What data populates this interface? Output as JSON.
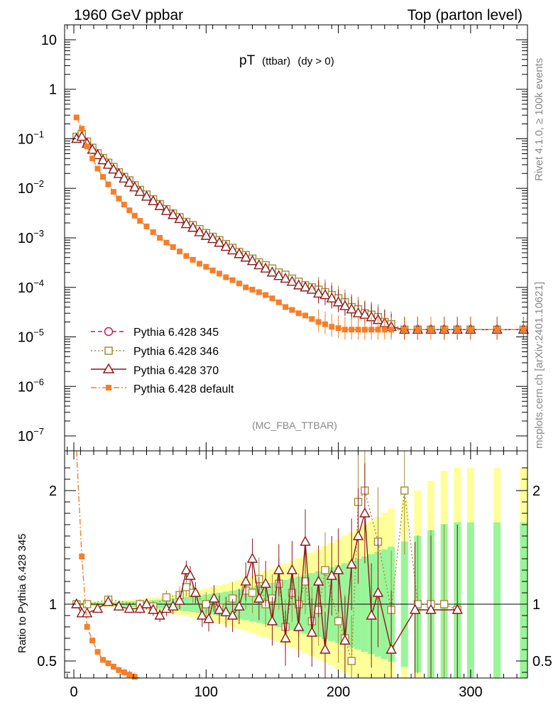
{
  "header": {
    "left": "1960 GeV ppbar",
    "right": "Top (parton level)"
  },
  "plot_title": {
    "main": "pT",
    "sub1": "(ttbar)",
    "sub2": "(dy > 0)"
  },
  "analysis_id": "(MC_FBA_TTBAR)",
  "side_labels": {
    "rivet": "Rivet 4.1.0, ≥ 100k events",
    "site": "mcplots.cern.ch [arXiv:2401.10621]"
  },
  "ratio_ylabel": "Ratio to Pythia 6.428 345",
  "colors": {
    "p345": "#c2185b",
    "p346": "#a68a35",
    "p370": "#8b1a1a",
    "default": "#f57f29",
    "band_yellow": "#ffff99",
    "band_green": "#99f599"
  },
  "chart_data": [
    {
      "type": "line",
      "title": "pT (ttbar) (dy > 0)",
      "xlabel": "",
      "ylabel": "",
      "xlim": [
        -7,
        343
      ],
      "ylim": [
        5e-08,
        20
      ],
      "yscale": "log",
      "xticks": [
        "0",
        "100",
        "200",
        "300"
      ],
      "yticks": [
        {
          "v": 10,
          "label": "10"
        },
        {
          "v": 1,
          "label": "1"
        },
        {
          "v": 0.1,
          "label": "10",
          "exp": "−1"
        },
        {
          "v": 0.01,
          "label": "10",
          "exp": "−2"
        },
        {
          "v": 0.001,
          "label": "10",
          "exp": "−3"
        },
        {
          "v": 0.0001,
          "label": "10",
          "exp": "−4"
        },
        {
          "v": 1e-05,
          "label": "10",
          "exp": "−5"
        },
        {
          "v": 1e-06,
          "label": "10",
          "exp": "−6"
        },
        {
          "v": 1e-07,
          "label": "10",
          "exp": "−7"
        }
      ],
      "legend_position": "lower-left",
      "series": [
        {
          "name": "Pythia 6.428 345",
          "style": "circle-open dashed",
          "x": [
            2,
            6,
            10,
            14,
            18,
            22,
            26,
            30,
            34,
            38,
            42,
            46,
            50,
            55,
            60,
            65,
            70,
            75,
            80,
            85,
            90,
            95,
            100,
            105,
            110,
            115,
            120,
            125,
            130,
            135,
            140,
            145,
            150,
            155,
            160,
            165,
            170,
            175,
            180,
            185,
            190,
            195,
            200,
            205,
            210,
            215,
            220,
            225,
            230,
            235,
            240,
            250,
            260,
            270,
            280,
            290,
            300,
            320,
            340
          ],
          "y": [
            0.11,
            0.12,
            0.085,
            0.065,
            0.05,
            0.04,
            0.032,
            0.026,
            0.021,
            0.017,
            0.014,
            0.011,
            0.009,
            0.0072,
            0.0058,
            0.0046,
            0.0037,
            0.003,
            0.0025,
            0.002,
            0.0017,
            0.0014,
            0.0012,
            0.001,
            0.00085,
            0.0007,
            0.0006,
            0.0005,
            0.00043,
            0.00036,
            0.0003,
            0.00026,
            0.00022,
            0.00019,
            0.00016,
            0.00014,
            0.00012,
            0.0001,
            9e-05,
            8e-05,
            7e-05,
            6e-05,
            5e-05,
            4.5e-05,
            4e-05,
            3.5e-05,
            3e-05,
            2.8e-05,
            2.5e-05,
            2e-05,
            1.6e-05,
            1.4e-05,
            1.4e-05,
            1.4e-05,
            1.4e-05,
            1.4e-05,
            1.4e-05,
            1.4e-05,
            1.4e-05
          ]
        },
        {
          "name": "Pythia 6.428 346",
          "style": "square-open dotted",
          "x": [
            2,
            6,
            10,
            14,
            18,
            22,
            26,
            30,
            34,
            38,
            42,
            46,
            50,
            55,
            60,
            65,
            70,
            75,
            80,
            85,
            90,
            95,
            100,
            105,
            110,
            115,
            120,
            125,
            130,
            135,
            140,
            145,
            150,
            155,
            160,
            165,
            170,
            175,
            180,
            185,
            190,
            195,
            200,
            205,
            210,
            215,
            220,
            225,
            230,
            235,
            240,
            250,
            260,
            270,
            280,
            290,
            300,
            320,
            340
          ],
          "y": [
            0.11,
            0.125,
            0.088,
            0.066,
            0.051,
            0.041,
            0.033,
            0.027,
            0.021,
            0.017,
            0.0145,
            0.0115,
            0.0093,
            0.0075,
            0.006,
            0.0048,
            0.0038,
            0.0031,
            0.0026,
            0.0021,
            0.0018,
            0.0015,
            0.00125,
            0.00105,
            0.0009,
            0.00075,
            0.00063,
            0.00052,
            0.00045,
            0.00038,
            0.00032,
            0.00028,
            0.00024,
            0.0002,
            0.00018,
            0.00015,
            0.00013,
            0.00011,
            0.0001,
            9e-05,
            8e-05,
            7e-05,
            6e-05,
            5e-05,
            4e-05,
            3.6e-05,
            3e-05,
            2.8e-05,
            2.5e-05,
            2e-05,
            1.8e-05,
            1.4e-05,
            1.4e-05,
            1.4e-05,
            1.4e-05,
            1.4e-05,
            1.4e-05,
            1.4e-05,
            1.4e-05
          ]
        },
        {
          "name": "Pythia 6.428 370",
          "style": "triangle-open solid",
          "x": [
            2,
            6,
            10,
            14,
            18,
            22,
            26,
            30,
            34,
            38,
            42,
            46,
            50,
            55,
            60,
            65,
            70,
            75,
            80,
            85,
            90,
            95,
            100,
            105,
            110,
            115,
            120,
            125,
            130,
            135,
            140,
            145,
            150,
            155,
            160,
            165,
            170,
            175,
            180,
            185,
            190,
            195,
            200,
            205,
            210,
            215,
            220,
            225,
            230,
            235,
            240,
            250,
            260,
            270,
            280,
            290,
            300,
            320,
            340
          ],
          "y": [
            0.1,
            0.11,
            0.08,
            0.06,
            0.047,
            0.037,
            0.03,
            0.024,
            0.0195,
            0.0158,
            0.013,
            0.0105,
            0.0085,
            0.0068,
            0.0055,
            0.0044,
            0.0035,
            0.0029,
            0.0024,
            0.0019,
            0.0016,
            0.0013,
            0.0011,
            0.00095,
            0.0008,
            0.00066,
            0.00056,
            0.00047,
            0.0004,
            0.00034,
            0.00028,
            0.00024,
            0.0002,
            0.00017,
            0.00015,
            0.00013,
            0.00011,
            0.0001,
            9e-05,
            7.5e-05,
            7e-05,
            6e-05,
            5e-05,
            4.2e-05,
            3.6e-05,
            3e-05,
            2.8e-05,
            2.5e-05,
            2.2e-05,
            1.9e-05,
            1.6e-05,
            1.4e-05,
            1.4e-05,
            1.4e-05,
            1.4e-05,
            1.4e-05,
            1.4e-05,
            1.4e-05,
            1.4e-05
          ]
        },
        {
          "name": "Pythia 6.428 default",
          "style": "square-filled dashdot",
          "x": [
            2,
            6,
            10,
            14,
            18,
            22,
            26,
            30,
            34,
            38,
            42,
            46,
            50,
            55,
            60,
            65,
            70,
            75,
            80,
            85,
            90,
            95,
            100,
            105,
            110,
            115,
            120,
            125,
            130,
            135,
            140,
            145,
            150,
            155,
            160,
            165,
            170,
            175,
            180,
            185,
            190,
            195,
            200,
            205,
            210,
            215,
            220,
            225,
            230,
            235,
            240,
            250,
            260,
            270,
            280,
            290,
            300,
            320,
            340
          ],
          "y": [
            0.27,
            0.16,
            0.07,
            0.04,
            0.025,
            0.017,
            0.012,
            0.0085,
            0.0062,
            0.0047,
            0.0036,
            0.0028,
            0.0022,
            0.0017,
            0.0013,
            0.001,
            0.0008,
            0.00065,
            0.00053,
            0.00043,
            0.00036,
            0.0003,
            0.00026,
            0.00022,
            0.00019,
            0.00016,
            0.00014,
            0.00012,
            0.0001,
            9e-05,
            8e-05,
            7e-05,
            6e-05,
            5e-05,
            4e-05,
            3.5e-05,
            3e-05,
            2.7e-05,
            2.3e-05,
            2e-05,
            1.8e-05,
            1.6e-05,
            1.5e-05,
            1.4e-05,
            1.4e-05,
            1.4e-05,
            1.4e-05,
            1.4e-05,
            1.4e-05,
            1.4e-05,
            1.4e-05,
            1.4e-05,
            1.4e-05,
            1.4e-05,
            1.4e-05,
            1.4e-05,
            1.4e-05,
            1.4e-05,
            1.4e-05
          ]
        }
      ]
    },
    {
      "type": "line",
      "title": "",
      "xlabel": "",
      "ylabel": "Ratio to Pythia 6.428 345",
      "xlim": [
        -7,
        343
      ],
      "ylim": [
        0.35,
        2.35
      ],
      "xticks": [
        "0",
        "100",
        "200",
        "300"
      ],
      "yticks": [
        {
          "v": 0.5,
          "label": "0.5"
        },
        {
          "v": 1,
          "label": "1"
        },
        {
          "v": 2,
          "label": "2"
        }
      ],
      "series": [
        {
          "name": "Pythia 6.428 346",
          "x": [
            2,
            10,
            26,
            50,
            60,
            70,
            80,
            85,
            90,
            100,
            110,
            120,
            130,
            135,
            140,
            145,
            150,
            155,
            160,
            165,
            170,
            175,
            180,
            185,
            190,
            200,
            205,
            210,
            215,
            220,
            230,
            240,
            250,
            260,
            270,
            280,
            290
          ],
          "y": [
            1.0,
            1.0,
            1.04,
            1.0,
            0.98,
            1.06,
            1.08,
            1.15,
            1.1,
            1.0,
            0.97,
            1.05,
            1.12,
            1.1,
            1.22,
            1.0,
            1.05,
            1.18,
            0.8,
            1.1,
            1.0,
            1.2,
            0.85,
            0.95,
            1.3,
            0.85,
            0.7,
            0.5,
            1.9,
            2.0,
            1.55,
            0.95,
            2.0,
            1.0,
            1.0,
            1.0,
            0.95
          ]
        },
        {
          "name": "Pythia 6.428 370",
          "x": [
            2,
            6,
            10,
            18,
            26,
            34,
            42,
            50,
            55,
            60,
            65,
            70,
            75,
            80,
            85,
            88,
            92,
            97,
            102,
            106,
            110,
            115,
            120,
            125,
            130,
            135,
            140,
            145,
            150,
            155,
            160,
            165,
            170,
            175,
            180,
            185,
            190,
            195,
            200,
            205,
            210,
            215,
            220,
            225,
            230,
            240,
            258,
            270,
            290
          ],
          "y": [
            1.0,
            0.92,
            0.92,
            0.96,
            1.02,
            0.98,
            0.96,
            0.96,
            1.0,
            0.95,
            0.9,
            0.96,
            0.98,
            1.03,
            1.3,
            1.25,
            1.1,
            0.9,
            0.87,
            1.05,
            0.95,
            0.93,
            0.9,
            0.98,
            1.2,
            1.4,
            1.05,
            1.18,
            0.85,
            1.3,
            0.7,
            1.3,
            0.8,
            1.55,
            0.75,
            1.2,
            0.6,
            1.25,
            1.3,
            0.68,
            1.35,
            1.6,
            1.8,
            0.9,
            1.1,
            0.6,
            0.95,
            0.95,
            0.95
          ]
        },
        {
          "name": "Pythia 6.428 default",
          "x": [
            2,
            6,
            10,
            14,
            18,
            22,
            26,
            30,
            34,
            38,
            42,
            46,
            50
          ],
          "y": [
            2.4,
            1.42,
            0.8,
            0.68,
            0.58,
            0.51,
            0.48,
            0.45,
            0.42,
            0.4,
            0.38,
            0.36,
            0.33
          ]
        }
      ]
    }
  ]
}
